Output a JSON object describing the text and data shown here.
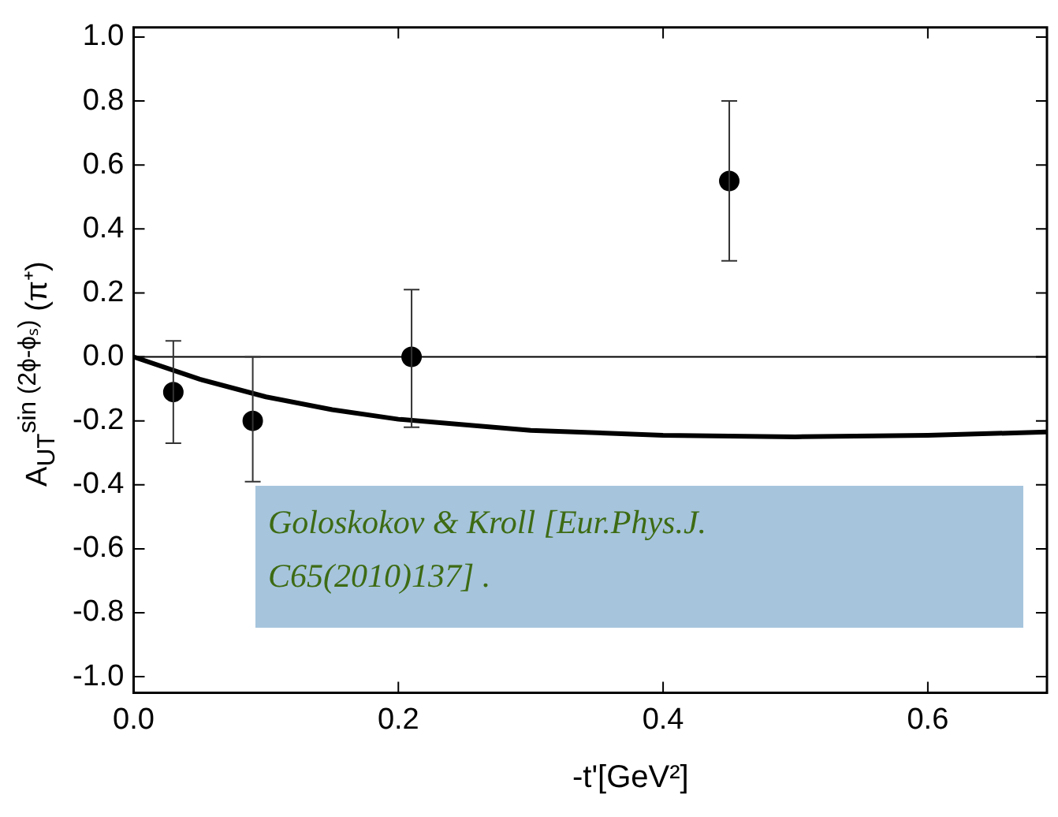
{
  "chart_data": {
    "type": "scatter",
    "xlabel": "-t'[GeV²]",
    "ylabel": "A$_{UT}$$^{sin (2ϕ-ϕₛ)}$ (π⁺)",
    "xlim": [
      0,
      0.69
    ],
    "xticks": [
      {
        "value": 0,
        "label": "0.0"
      },
      {
        "value": 0.2,
        "label": "0.2"
      },
      {
        "value": 0.4,
        "label": "0.4"
      },
      {
        "value": 0.6,
        "label": "0.6"
      }
    ],
    "ylim": [
      -1.05,
      1.03
    ],
    "yticks": [
      {
        "value": -1,
        "label": "-1.0"
      },
      {
        "value": -0.8,
        "label": "-0.8"
      },
      {
        "value": -0.6,
        "label": "-0.6"
      },
      {
        "value": -0.4,
        "label": "-0.4"
      },
      {
        "value": -0.2,
        "label": "-0.2"
      },
      {
        "value": 0,
        "label": "0.0"
      },
      {
        "value": 0.2,
        "label": "0.2"
      },
      {
        "value": 0.4,
        "label": "0.4"
      },
      {
        "value": 0.6,
        "label": "0.6"
      },
      {
        "value": 0.8,
        "label": "0.8"
      },
      {
        "value": 1,
        "label": "1.0"
      }
    ],
    "grid": false,
    "legend": false,
    "marker": "circle",
    "series": [
      {
        "color": "#000000",
        "x": [
          0.03,
          0.09,
          0.21,
          0.45
        ],
        "values": [
          -0.11,
          -0.2,
          0.0,
          0.55
        ],
        "errors": [
          [
            -0.27,
            0.05
          ],
          [
            -0.39,
            0.0
          ],
          [
            -0.22,
            0.21
          ],
          [
            0.3,
            0.8
          ]
        ]
      },
      {
        "type": "line",
        "color": "#000000",
        "marker": "none",
        "x": [
          0,
          0.05,
          0.1,
          0.15,
          0.2,
          0.3,
          0.4,
          0.5,
          0.6,
          0.69
        ],
        "values": [
          0,
          -0.07,
          -0.125,
          -0.165,
          -0.195,
          -0.23,
          -0.245,
          -0.25,
          -0.245,
          -0.235
        ]
      }
    ],
    "ref_lines": [
      {
        "axis": "y",
        "value": 0,
        "color": "#000000"
      }
    ],
    "annotations": [
      "Goloskokov & Kroll [Eur.Phys.J. C65(2010)137] ."
    ]
  }
}
